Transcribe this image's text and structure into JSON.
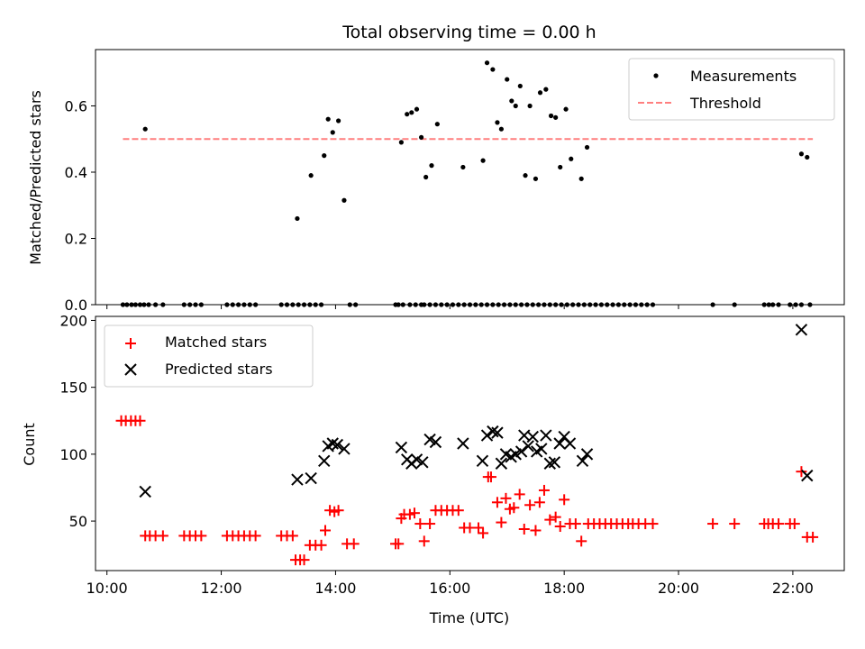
{
  "chart_data": [
    {
      "type": "scatter",
      "title": "Total observing time = 0.00 h",
      "xlabel": "",
      "ylabel": "Matched/Predicted stars",
      "xlim": [
        9.8,
        22.9
      ],
      "ylim": [
        0,
        0.77
      ],
      "yticks": [
        0.0,
        0.2,
        0.4,
        0.6
      ],
      "ytick_labels": [
        "0.0",
        "0.2",
        "0.4",
        "0.6"
      ],
      "legend_position": "top-right",
      "threshold": {
        "name": "Threshold",
        "x": [
          10.28,
          22.35
        ],
        "y": 0.5,
        "color": "#ff7f7f"
      },
      "series": [
        {
          "name": "Measurements",
          "color": "#000000",
          "marker": "dot",
          "x": [
            10.28,
            10.35,
            10.43,
            10.5,
            10.58,
            10.65,
            10.73,
            10.85,
            10.98,
            11.35,
            11.45,
            11.55,
            11.65,
            12.1,
            12.2,
            12.3,
            12.4,
            12.5,
            12.6,
            13.05,
            13.15,
            13.25,
            13.35,
            13.45,
            13.55,
            13.65,
            13.75,
            14.25,
            14.35,
            15.05,
            15.1,
            15.18,
            15.3,
            15.4,
            15.5,
            15.55,
            15.65,
            15.75,
            15.85,
            15.95,
            16.05,
            16.15,
            16.25,
            16.35,
            16.45,
            16.55,
            16.65,
            16.75,
            16.85,
            16.95,
            17.05,
            17.15,
            17.25,
            17.35,
            17.45,
            17.55,
            17.65,
            17.75,
            17.85,
            17.95,
            18.05,
            18.15,
            18.25,
            18.35,
            18.45,
            18.55,
            18.65,
            18.75,
            18.85,
            18.95,
            19.05,
            19.15,
            19.25,
            19.35,
            19.45,
            19.55,
            20.6,
            20.98,
            21.5,
            21.58,
            21.65,
            21.75,
            21.95,
            22.05,
            22.15,
            22.3,
            10.67,
            13.33,
            13.57,
            13.8,
            13.87,
            13.95,
            14.05,
            14.15,
            15.15,
            15.25,
            15.33,
            15.42,
            15.5,
            15.58,
            15.68,
            15.78,
            16.23,
            16.58,
            16.65,
            16.75,
            16.83,
            16.9,
            17.0,
            17.08,
            17.15,
            17.23,
            17.32,
            17.4,
            17.5,
            17.58,
            17.68,
            17.77,
            17.85,
            17.93,
            18.03,
            18.12,
            18.3,
            18.4,
            22.15,
            22.25
          ],
          "y": [
            0,
            0,
            0,
            0,
            0,
            0,
            0,
            0,
            0,
            0,
            0,
            0,
            0,
            0,
            0,
            0,
            0,
            0,
            0,
            0,
            0,
            0,
            0,
            0,
            0,
            0,
            0,
            0,
            0,
            0,
            0,
            0,
            0,
            0,
            0,
            0,
            0,
            0,
            0,
            0,
            0,
            0,
            0,
            0,
            0,
            0,
            0,
            0,
            0,
            0,
            0,
            0,
            0,
            0,
            0,
            0,
            0,
            0,
            0,
            0,
            0,
            0,
            0,
            0,
            0,
            0,
            0,
            0,
            0,
            0,
            0,
            0,
            0,
            0,
            0,
            0,
            0,
            0,
            0,
            0,
            0,
            0,
            0,
            0,
            0,
            0,
            0.53,
            0.26,
            0.39,
            0.45,
            0.56,
            0.52,
            0.555,
            0.315,
            0.49,
            0.575,
            0.58,
            0.59,
            0.505,
            0.385,
            0.42,
            0.545,
            0.415,
            0.435,
            0.73,
            0.71,
            0.55,
            0.53,
            0.68,
            0.615,
            0.6,
            0.66,
            0.39,
            0.6,
            0.38,
            0.64,
            0.65,
            0.57,
            0.565,
            0.415,
            0.59,
            0.44,
            0.38,
            0.475,
            0.455,
            0.445
          ]
        }
      ]
    },
    {
      "type": "scatter",
      "title": "",
      "xlabel": "Time (UTC)",
      "ylabel": "Count",
      "xlim": [
        9.8,
        22.9
      ],
      "ylim": [
        13,
        203
      ],
      "yticks": [
        50,
        100,
        150,
        200
      ],
      "ytick_labels": [
        "50",
        "100",
        "150",
        "200"
      ],
      "xticks": [
        10,
        12,
        14,
        16,
        18,
        20,
        22
      ],
      "xtick_labels": [
        "10:00",
        "12:00",
        "14:00",
        "16:00",
        "18:00",
        "20:00",
        "22:00"
      ],
      "legend_position": "top-left",
      "series": [
        {
          "name": "Matched stars",
          "color": "#ff0000",
          "marker": "plus",
          "x": [
            10.25,
            10.33,
            10.42,
            10.5,
            10.58,
            10.67,
            10.75,
            10.85,
            10.98,
            11.35,
            11.45,
            11.55,
            11.65,
            12.1,
            12.2,
            12.3,
            12.4,
            12.5,
            12.6,
            13.05,
            13.15,
            13.25,
            13.3,
            13.38,
            13.45,
            13.55,
            13.65,
            13.75,
            13.82,
            13.9,
            13.98,
            14.05,
            14.2,
            14.32,
            15.05,
            15.1,
            15.15,
            15.2,
            15.3,
            15.38,
            15.48,
            15.55,
            15.65,
            15.75,
            15.85,
            15.95,
            16.05,
            16.15,
            16.25,
            16.35,
            16.5,
            16.58,
            16.67,
            16.72,
            16.83,
            16.9,
            16.98,
            17.05,
            17.12,
            17.22,
            17.3,
            17.4,
            17.5,
            17.57,
            17.65,
            17.75,
            17.85,
            17.93,
            18.0,
            18.1,
            18.2,
            18.3,
            18.42,
            18.52,
            18.62,
            18.72,
            18.82,
            18.92,
            19.02,
            19.12,
            19.2,
            19.3,
            19.42,
            19.55,
            20.6,
            20.98,
            21.5,
            21.57,
            21.65,
            21.75,
            21.95,
            22.03,
            22.15,
            22.25,
            22.35
          ],
          "y": [
            125,
            125,
            125,
            125,
            125,
            39,
            39,
            39,
            39,
            39,
            39,
            39,
            39,
            39,
            39,
            39,
            39,
            39,
            39,
            39,
            39,
            39,
            21,
            21,
            21,
            32,
            32,
            32,
            43,
            58,
            57,
            58,
            33,
            33,
            33,
            33,
            52,
            55,
            55,
            56,
            48,
            35,
            48,
            58,
            58,
            58,
            58,
            58,
            45,
            45,
            45,
            41,
            83,
            83,
            64,
            49,
            67,
            59,
            60,
            70,
            44,
            62,
            43,
            64,
            73,
            51,
            53,
            46,
            66,
            48,
            48,
            35,
            48,
            48,
            48,
            48,
            48,
            48,
            48,
            48,
            48,
            48,
            48,
            48,
            48,
            48,
            48,
            48,
            48,
            48,
            48,
            48,
            87,
            38,
            38
          ]
        },
        {
          "name": "Predicted stars",
          "color": "#000000",
          "marker": "x",
          "x": [
            10.67,
            13.33,
            13.57,
            13.8,
            13.87,
            13.95,
            14.03,
            14.15,
            15.15,
            15.25,
            15.33,
            15.42,
            15.52,
            15.65,
            15.75,
            16.23,
            16.57,
            16.65,
            16.75,
            16.83,
            16.9,
            16.98,
            17.07,
            17.15,
            17.25,
            17.3,
            17.37,
            17.45,
            17.52,
            17.6,
            17.68,
            17.75,
            17.83,
            17.92,
            18.0,
            18.1,
            18.32,
            18.4,
            22.15,
            22.25
          ],
          "y": [
            72,
            81,
            82,
            95,
            106,
            108,
            107,
            104,
            105,
            96,
            93,
            96,
            94,
            111,
            109,
            108,
            95,
            114,
            117,
            116,
            93,
            100,
            98,
            100,
            102,
            114,
            106,
            113,
            102,
            104,
            114,
            93,
            94,
            108,
            113,
            108,
            95,
            100,
            193,
            84
          ]
        }
      ]
    }
  ]
}
